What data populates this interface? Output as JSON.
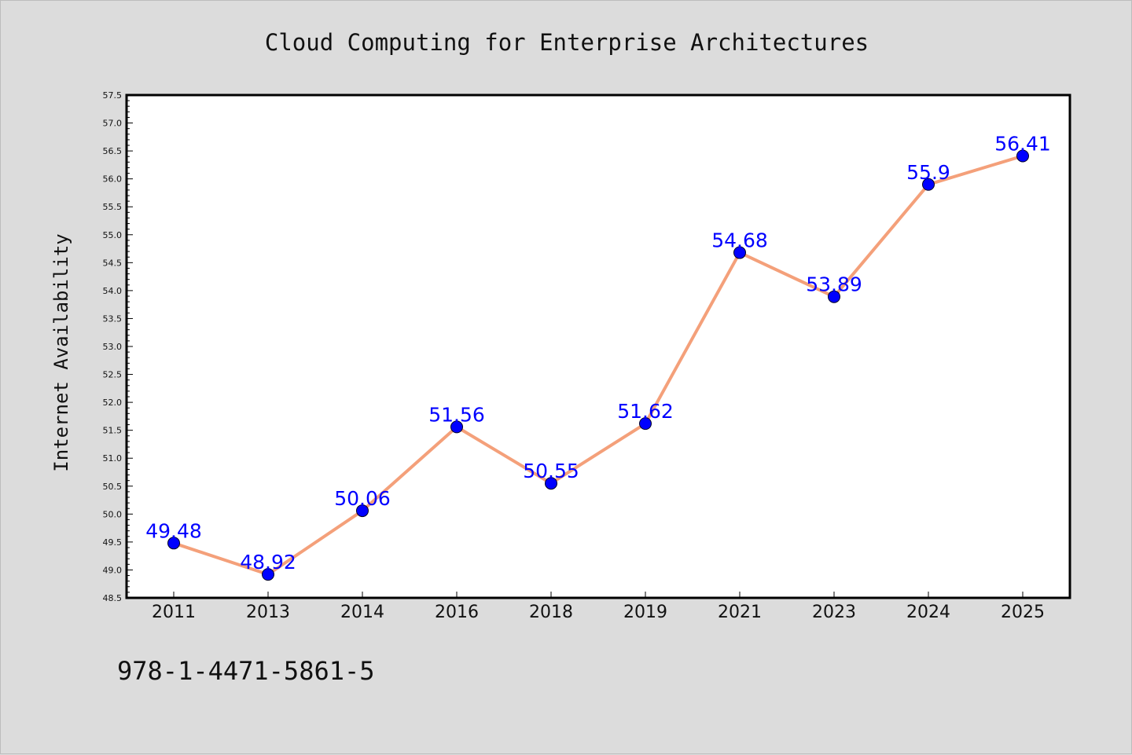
{
  "chart_data": {
    "type": "line",
    "title": "Cloud Computing for Enterprise Architectures",
    "xlabel": "",
    "ylabel": "Internet Availability",
    "categories": [
      "2011",
      "2013",
      "2014",
      "2016",
      "2018",
      "2019",
      "2021",
      "2023",
      "2024",
      "2025"
    ],
    "series": [
      {
        "values": [
          49.48,
          48.92,
          50.06,
          51.56,
          50.55,
          51.62,
          54.68,
          53.89,
          55.9,
          56.41
        ],
        "labels": [
          "49.48",
          "48.92",
          "50.06",
          "51.56",
          "50.55",
          "51.62",
          "54.68",
          "53.89",
          "55.9",
          "56.41"
        ]
      }
    ],
    "ylim": [
      48.5,
      57.5
    ],
    "yticks": [
      "48.5",
      "49.0",
      "49.5",
      "50.0",
      "50.5",
      "51.0",
      "51.5",
      "52.0",
      "52.5",
      "53.0",
      "53.5",
      "54.0",
      "54.5",
      "55.0",
      "55.5",
      "56.0",
      "56.5",
      "57.0",
      "57.5"
    ],
    "grid": false,
    "legend": "none",
    "colors": {
      "line": "#f4a07a",
      "marker": "#0000ff",
      "label": "#0000ff",
      "background": "#dcdcdc",
      "plot_background": "#ffffff"
    }
  },
  "annotation": "978-1-4471-5861-5"
}
